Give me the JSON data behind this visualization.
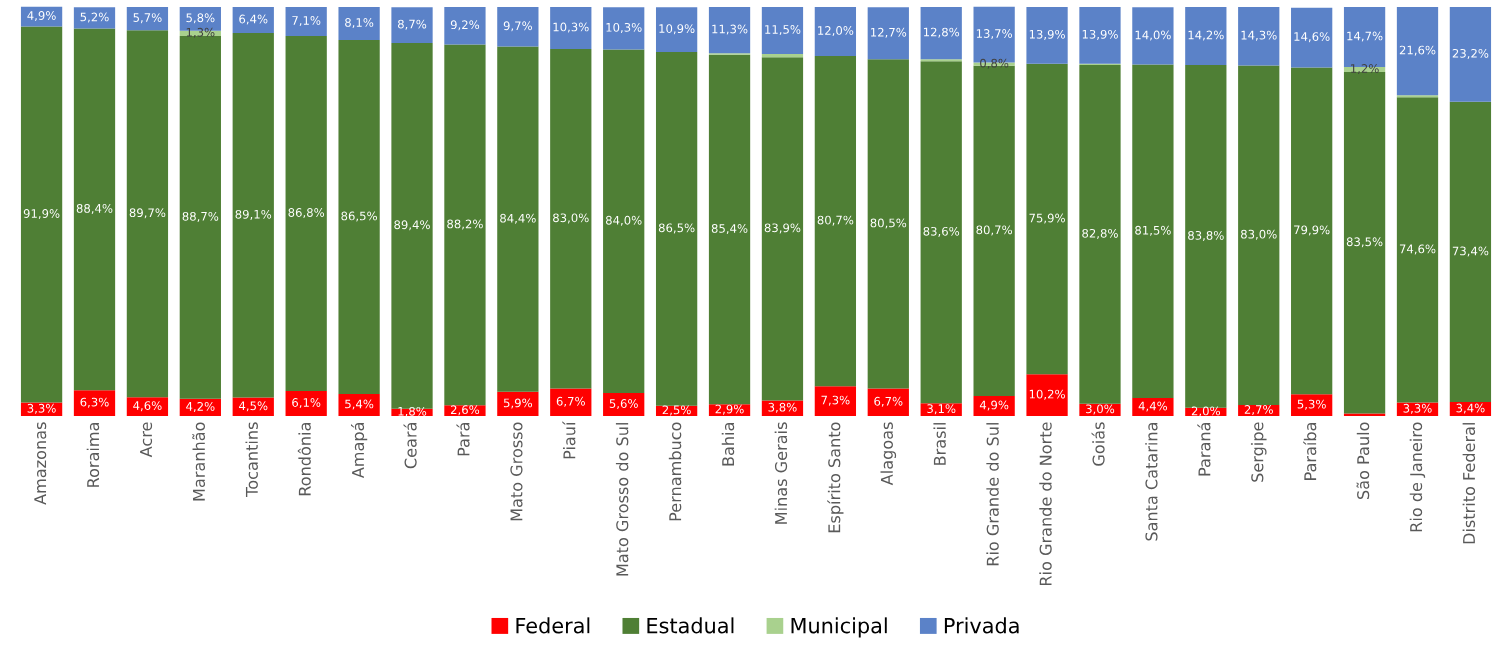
{
  "chart_data": {
    "type": "bar",
    "stacked": true,
    "legend": "bottom",
    "grid": false,
    "categories": [
      "Amazonas",
      "Roraima",
      "Acre",
      "Maranhão",
      "Tocantins",
      "Rondônia",
      "Amapá",
      "Ceará",
      "Pará",
      "Mato Grosso",
      "Piauí",
      "Mato Grosso do Sul",
      "Pernambuco",
      "Bahia",
      "Minas Gerais",
      "Espírito Santo",
      "Alagoas",
      "Brasil",
      "Rio Grande do Sul",
      "Rio Grande do Norte",
      "Goiás",
      "Santa Catarina",
      "Paraná",
      "Sergipe",
      "Paraíba",
      "São Paulo",
      "Rio de Janeiro",
      "Distrito Federal"
    ],
    "series": [
      {
        "name": "Federal",
        "color": "#ff0000",
        "values": [
          3.3,
          6.3,
          4.6,
          4.2,
          4.5,
          6.1,
          5.4,
          1.8,
          2.6,
          5.9,
          6.7,
          5.6,
          2.5,
          2.9,
          3.8,
          7.3,
          6.7,
          3.1,
          4.9,
          10.2,
          3.0,
          4.4,
          2.0,
          2.7,
          5.3,
          0.6,
          3.3,
          3.4
        ],
        "value_labels": [
          "3,3%",
          "6,3%",
          "4,6%",
          "4,2%",
          "4,5%",
          "6,1%",
          "5,4%",
          "1,8%",
          "2,6%",
          "5,9%",
          "6,7%",
          "5,6%",
          "2,5%",
          "2,9%",
          "3,8%",
          "7,3%",
          "6,7%",
          "3,1%",
          "4,9%",
          "10,2%",
          "3,0%",
          "4,4%",
          "2,0%",
          "2,7%",
          "5,3%",
          null,
          "3,3%",
          "3,4%"
        ]
      },
      {
        "name": "Estadual",
        "color": "#4f7f35",
        "values": [
          91.9,
          88.4,
          89.7,
          88.7,
          89.1,
          86.8,
          86.5,
          89.4,
          88.2,
          84.4,
          83.0,
          84.0,
          86.5,
          85.4,
          83.9,
          80.7,
          80.5,
          83.6,
          80.7,
          75.9,
          82.8,
          81.5,
          83.8,
          83.0,
          79.9,
          83.5,
          74.6,
          73.4
        ],
        "value_labels": [
          "91,9%",
          "88,4%",
          "89,7%",
          "88,7%",
          "89,1%",
          "86,8%",
          "86,5%",
          "89,4%",
          "88,2%",
          "84,4%",
          "83,0%",
          "84,0%",
          "86,5%",
          "85,4%",
          "83,9%",
          "80,7%",
          "80,5%",
          "83,6%",
          "80,7%",
          "75,9%",
          "82,8%",
          "81,5%",
          "83,8%",
          "83,0%",
          "79,9%",
          "83,5%",
          "74,6%",
          "73,4%"
        ]
      },
      {
        "name": "Municipal",
        "color": "#a9d18e",
        "values": [
          0,
          0,
          0,
          1.3,
          0,
          0,
          0,
          0,
          0,
          0,
          0,
          0,
          0,
          0.4,
          0.8,
          0,
          0,
          0.5,
          0.8,
          0,
          0.3,
          0,
          0,
          0,
          0,
          1.2,
          0.5,
          0
        ],
        "value_labels": [
          null,
          null,
          null,
          "1,3%",
          null,
          null,
          null,
          null,
          null,
          null,
          null,
          null,
          null,
          null,
          null,
          null,
          null,
          null,
          "0,8%",
          null,
          null,
          null,
          null,
          null,
          null,
          "1,2%",
          null,
          null
        ]
      },
      {
        "name": "Privada",
        "color": "#5b82c8",
        "values": [
          4.9,
          5.2,
          5.7,
          5.8,
          6.4,
          7.1,
          8.1,
          8.7,
          9.2,
          9.7,
          10.3,
          10.3,
          10.9,
          11.3,
          11.5,
          12.0,
          12.7,
          12.8,
          13.7,
          13.9,
          13.9,
          14.0,
          14.2,
          14.3,
          14.6,
          14.7,
          21.6,
          23.2
        ],
        "value_labels": [
          "4,9%",
          "5,2%",
          "5,7%",
          "5,8%",
          "6,4%",
          "7,1%",
          "8,1%",
          "8,7%",
          "9,2%",
          "9,7%",
          "10,3%",
          "10,3%",
          "10,9%",
          "11,3%",
          "11,5%",
          "12,0%",
          "12,7%",
          "12,8%",
          "13,7%",
          "13,9%",
          "13,9%",
          "14,0%",
          "14,2%",
          "14,3%",
          "14,6%",
          "14,7%",
          "21,6%",
          "23,2%"
        ]
      }
    ]
  }
}
